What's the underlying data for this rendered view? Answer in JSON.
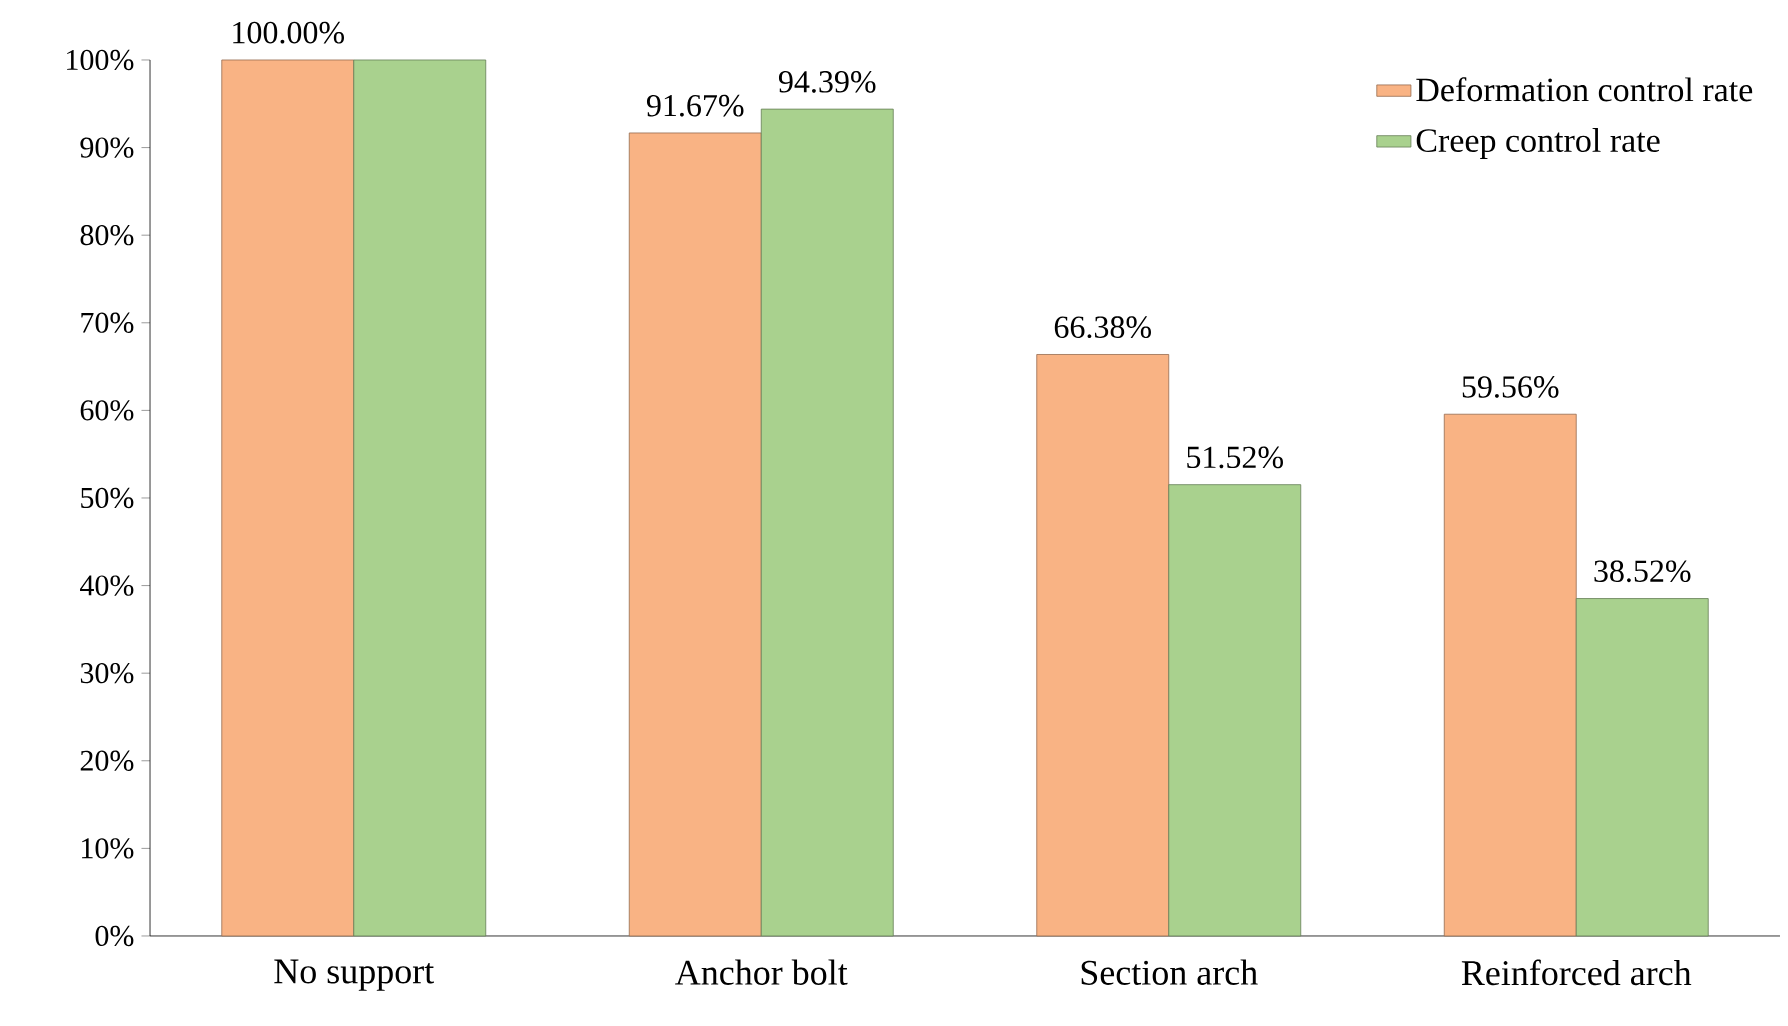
{
  "chart_data": {
    "type": "bar",
    "categories": [
      "No support",
      "Anchor bolt",
      "Section arch",
      "Reinforced arch"
    ],
    "series": [
      {
        "name": "Deformation control rate",
        "color": "#f9b384",
        "values": [
          100.0,
          91.67,
          66.38,
          59.56
        ],
        "value_labels": [
          "100.00%",
          "91.67%",
          "66.38%",
          "59.56%"
        ]
      },
      {
        "name": "Creep control rate",
        "color": "#a9d18e",
        "values": [
          100.0,
          94.39,
          51.52,
          38.52
        ],
        "value_labels": [
          null,
          "94.39%",
          "51.52%",
          "38.52%"
        ]
      }
    ],
    "ylim": [
      0,
      100
    ],
    "yticks": [
      {
        "value": 0,
        "label": "0%"
      },
      {
        "value": 10,
        "label": "10%"
      },
      {
        "value": 20,
        "label": "20%"
      },
      {
        "value": 30,
        "label": "30%"
      },
      {
        "value": 40,
        "label": "40%"
      },
      {
        "value": 50,
        "label": "50%"
      },
      {
        "value": 60,
        "label": "60%"
      },
      {
        "value": 70,
        "label": "70%"
      },
      {
        "value": 80,
        "label": "80%"
      },
      {
        "value": 90,
        "label": "90%"
      },
      {
        "value": 100,
        "label": "100%"
      }
    ],
    "legend": "top right"
  }
}
